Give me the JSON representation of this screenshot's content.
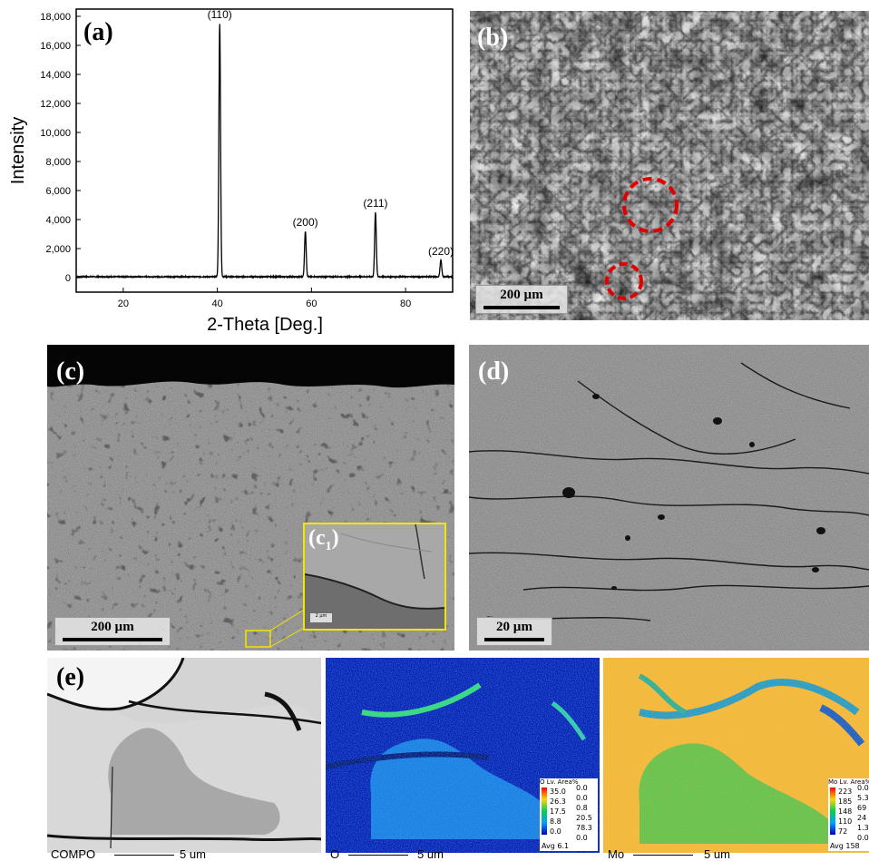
{
  "panels": {
    "a": {
      "label": "(a)"
    },
    "b": {
      "label": "(b)",
      "scale": "200 µm"
    },
    "c": {
      "label": "(c)",
      "scale": "200 µm",
      "inset_label": "(c",
      "inset_sub": "1",
      "inset_close": ")",
      "inset_scale": "2 µm"
    },
    "d": {
      "label": "(d)",
      "scale": "20 µm"
    },
    "e": {
      "label": "(e)",
      "compo_label": "COMPO",
      "scale": "5 um",
      "o_map": {
        "element": "O",
        "legend_title": "O  Lv. Area%",
        "levels": [
          "35.0",
          "26.3",
          "17.5",
          "8.8",
          "0.0"
        ],
        "area": [
          "0.0",
          "0.0",
          "0.8",
          "20.5",
          "78.3"
        ],
        "bottom": "0.0",
        "avg": "Avg 6.1"
      },
      "mo_map": {
        "element": "Mo",
        "legend_title": "Mo  Lv. Area%",
        "levels": [
          "223",
          "185",
          "148",
          "110",
          "72"
        ],
        "area": [
          "0.0",
          "5.3",
          "69",
          "24",
          "1.3"
        ],
        "bottom": "0.0",
        "avg": "Avg 158"
      }
    }
  },
  "chart_data": {
    "type": "line",
    "xlabel": "2-Theta [Deg.]",
    "ylabel": "Intensity",
    "xlim": [
      10,
      90
    ],
    "ylim": [
      -1000,
      18500
    ],
    "xticks": [
      20,
      40,
      60,
      80
    ],
    "yticks": [
      0,
      2000,
      4000,
      6000,
      8000,
      10000,
      12000,
      14000,
      16000,
      18000
    ],
    "ytick_labels": [
      "0",
      "2,000",
      "4,000",
      "6,000",
      "8,000",
      "10,000",
      "12,000",
      "14,000",
      "16,000",
      "18,000"
    ],
    "baseline": 60,
    "peaks": [
      {
        "label": "(110)",
        "x": 40.5,
        "y": 17500,
        "width": 0.35
      },
      {
        "label": "(200)",
        "x": 58.7,
        "y": 3200,
        "width": 0.35
      },
      {
        "label": "(211)",
        "x": 73.6,
        "y": 4500,
        "width": 0.35
      },
      {
        "label": "(220)",
        "x": 87.5,
        "y": 1200,
        "width": 0.35
      }
    ],
    "colors": {
      "line": "#000000"
    }
  }
}
